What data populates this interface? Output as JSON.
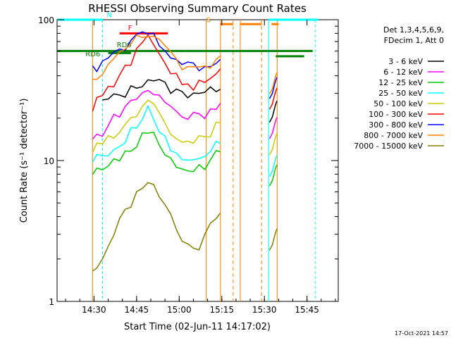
{
  "chart_data": {
    "type": "line",
    "title": "RHESSI Observing Summary Count Rates",
    "xlabel": "Start Time (02-Jun-11 14:17:02)",
    "ylabel": "Count Rate (s⁻¹ detector⁻¹)",
    "y_scale": "log",
    "ylim": [
      1,
      100
    ],
    "xlim_minutes": [
      0,
      99
    ],
    "x_tick_labels": [
      "14:30",
      "14:45",
      "15:00",
      "15:15",
      "15:30",
      "15:45"
    ],
    "x_tick_minutes": [
      13,
      28,
      43,
      58,
      73,
      88
    ],
    "y_tick_labels": [
      "1",
      "10",
      "100"
    ],
    "y_tick_values": [
      1,
      10,
      100
    ],
    "grid": false,
    "legend_position": "right",
    "legend_header": [
      "Det 1,3,4,5,6,9,",
      "FDecim 1, Att 0"
    ],
    "series": [
      {
        "name": "3 - 6 keV",
        "color": "#000000",
        "x": [
          12.5,
          14,
          16,
          18,
          20,
          22,
          24,
          26,
          28,
          30,
          32,
          34,
          36,
          38,
          40,
          42,
          44,
          46,
          48,
          50,
          52,
          54,
          56,
          57.5
        ],
        "y": [
          null,
          null,
          26,
          27,
          28,
          29,
          30,
          32,
          34,
          36,
          38,
          38,
          36,
          34,
          32,
          31,
          30,
          30,
          31,
          31,
          30,
          31,
          33,
          34
        ]
      },
      {
        "name": "6 - 12 keV",
        "color": "#ff00ff",
        "x": [
          12.5,
          14,
          16,
          18,
          20,
          22,
          24,
          26,
          28,
          30,
          32,
          34,
          36,
          38,
          40,
          42,
          44,
          46,
          48,
          50,
          52,
          54,
          56,
          57.5
        ],
        "y": [
          14,
          15,
          16,
          18,
          20,
          22,
          24,
          26,
          28,
          30,
          32,
          30,
          28,
          26,
          24,
          22,
          21,
          20,
          22,
          22,
          21,
          22,
          25,
          26
        ]
      },
      {
        "name": "12 - 25 keV",
        "color": "#00cc00",
        "x": [
          12.5,
          14,
          16,
          18,
          20,
          22,
          24,
          26,
          28,
          30,
          32,
          34,
          36,
          38,
          40,
          42,
          44,
          46,
          48,
          50,
          52,
          54,
          56,
          57.5
        ],
        "y": [
          8,
          8.5,
          9,
          9.5,
          10,
          10.5,
          11,
          12,
          13,
          15,
          17,
          15,
          13,
          11.5,
          10.5,
          9.5,
          9,
          8.5,
          8.5,
          9,
          9,
          10,
          11,
          12
        ]
      },
      {
        "name": "25 - 50 keV",
        "color": "#00ffff",
        "x": [
          12.5,
          14,
          16,
          18,
          20,
          22,
          24,
          26,
          28,
          30,
          32,
          34,
          36,
          38,
          40,
          42,
          44,
          46,
          48,
          50,
          52,
          54,
          56,
          57.5
        ],
        "y": [
          10,
          10.5,
          11,
          11.5,
          12,
          13,
          14,
          16,
          18,
          21,
          24,
          20,
          17,
          14,
          12,
          11,
          10.5,
          10,
          10.5,
          11,
          11,
          12,
          13,
          14
        ]
      },
      {
        "name": "50 - 100 keV",
        "color": "#cccc00",
        "x": [
          12.5,
          14,
          16,
          18,
          20,
          22,
          24,
          26,
          28,
          30,
          32,
          34,
          36,
          38,
          40,
          42,
          44,
          46,
          48,
          50,
          52,
          54,
          56,
          57.5
        ],
        "y": [
          12,
          12.5,
          13,
          14,
          15,
          16,
          18,
          20,
          22,
          25,
          28,
          24,
          21,
          18,
          16,
          15,
          14,
          13.5,
          14,
          15,
          15,
          16,
          18,
          20
        ]
      },
      {
        "name": "100 - 300 keV",
        "color": "#ff0000",
        "x": [
          12.5,
          14,
          16,
          18,
          20,
          22,
          24,
          26,
          28,
          30,
          32,
          34,
          36,
          38,
          40,
          42,
          44,
          46,
          48,
          50,
          52,
          54,
          56,
          57.5
        ],
        "y": [
          24,
          26,
          28,
          32,
          36,
          40,
          45,
          50,
          58,
          68,
          74,
          68,
          58,
          50,
          44,
          40,
          36,
          34,
          34,
          35,
          36,
          37,
          40,
          42
        ]
      },
      {
        "name": "300 - 800 keV",
        "color": "#0000ff",
        "x": [
          12.5,
          14,
          16,
          18,
          20,
          22,
          24,
          26,
          28,
          30,
          32,
          34,
          36,
          38,
          40,
          42,
          44,
          46,
          48,
          50,
          52,
          54,
          56,
          57.5
        ],
        "y": [
          44,
          46,
          48,
          52,
          56,
          60,
          64,
          68,
          74,
          78,
          80,
          76,
          70,
          64,
          58,
          54,
          50,
          48,
          46,
          45,
          46,
          47,
          48,
          50
        ]
      },
      {
        "name": "800 - 7000 keV",
        "color": "#ff8000",
        "x": [
          12.5,
          14,
          16,
          18,
          20,
          22,
          24,
          26,
          28,
          30,
          32,
          34,
          36,
          38,
          40,
          42,
          44,
          46,
          48,
          50,
          52,
          54,
          56,
          57.5
        ],
        "y": [
          36,
          40,
          44,
          48,
          52,
          56,
          62,
          68,
          74,
          80,
          82,
          78,
          70,
          62,
          56,
          50,
          46,
          44,
          44,
          45,
          46,
          48,
          52,
          54
        ]
      },
      {
        "name": "7000 - 15000 keV",
        "color": "#808000",
        "x": [
          12.5,
          14,
          16,
          18,
          20,
          22,
          24,
          26,
          28,
          30,
          32,
          34,
          36,
          38,
          40,
          42,
          44,
          46,
          48,
          50,
          52,
          54,
          56,
          57.5
        ],
        "y": [
          1.6,
          1.8,
          2.1,
          2.5,
          3.0,
          3.6,
          4.3,
          5.0,
          5.8,
          6.5,
          6.8,
          6.4,
          5.6,
          4.8,
          4.0,
          3.3,
          2.8,
          2.4,
          2.3,
          2.5,
          2.9,
          3.4,
          3.9,
          4.2
        ]
      }
    ],
    "series_segment_after_gap": {
      "x": [
        74.5,
        75.5,
        76.5,
        77.5
      ],
      "comment_free": true
    },
    "annotations": [
      {
        "text": "N",
        "color": "#00ffff"
      },
      {
        "text": "F",
        "color": "#ff0000"
      },
      {
        "text": "RD0",
        "color": "#008000"
      },
      {
        "text": "RD6",
        "color": "#008000"
      },
      {
        "text": "S",
        "color": "#ff8000"
      }
    ],
    "footer_timestamp": "17-Oct-2021 14:57"
  }
}
